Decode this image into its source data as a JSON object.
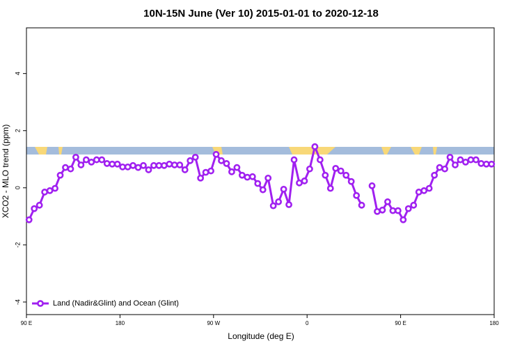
{
  "chart_data": {
    "type": "line",
    "title": "10N-15N June (Ver 10)   2015-01-01 to 2020-12-18",
    "x_label": "Longitude (deg E)",
    "y_label": "XCO2 - MLO trend (ppm)",
    "x": [
      92.5,
      97.5,
      102.5,
      107.5,
      112.5,
      117.5,
      122.5,
      127.5,
      132.5,
      137.5,
      142.5,
      147.5,
      152.5,
      157.5,
      162.5,
      167.5,
      172.5,
      177.5,
      182.5,
      187.5,
      192.5,
      197.5,
      202.5,
      207.5,
      212.5,
      217.5,
      222.5,
      227.5,
      232.5,
      237.5,
      242.5,
      247.5,
      252.5,
      257.5,
      262.5,
      267.5,
      272.5,
      277.5,
      282.5,
      287.5,
      292.5,
      297.5,
      302.5,
      307.5,
      312.5,
      317.5,
      322.5,
      327.5,
      332.5,
      337.5,
      342.5,
      347.5,
      352.5,
      357.5,
      362.5,
      367.5,
      372.5,
      377.5,
      382.5,
      387.5,
      392.5,
      397.5,
      402.5,
      407.5,
      412.5,
      417.5,
      422.5,
      427.5,
      432.5,
      437.5,
      442.5,
      447.5,
      452.5,
      457.5,
      462.5,
      467.5,
      472.5,
      477.5,
      482.5,
      487.5,
      492.5,
      497.5,
      502.5,
      507.5,
      512.5,
      517.5,
      522.5,
      527.5,
      532.5,
      537.5
    ],
    "series": [
      {
        "name": "Land (Nadir&Glint) and Ocean (Glint)",
        "color": "#a020f0",
        "values": [
          -1.12,
          -0.73,
          -0.61,
          -0.15,
          -0.1,
          -0.02,
          0.44,
          0.71,
          0.66,
          1.07,
          0.8,
          0.98,
          0.9,
          0.98,
          0.98,
          0.85,
          0.83,
          0.83,
          0.73,
          0.73,
          0.78,
          0.71,
          0.78,
          0.63,
          0.78,
          0.78,
          0.78,
          0.83,
          0.8,
          0.8,
          0.63,
          0.95,
          1.07,
          0.34,
          0.54,
          0.59,
          1.17,
          0.95,
          0.85,
          0.56,
          0.71,
          0.44,
          0.37,
          0.39,
          0.15,
          -0.07,
          0.34,
          -0.63,
          -0.49,
          -0.05,
          -0.59,
          0.98,
          0.17,
          0.24,
          0.66,
          1.44,
          0.98,
          0.44,
          -0.02,
          0.68,
          0.59,
          0.44,
          0.22,
          -0.27,
          -0.61,
          null,
          0.07,
          -0.83,
          -0.78,
          -0.49,
          -0.8,
          -0.8,
          -1.12,
          -0.73,
          -0.61,
          -0.15,
          -0.1,
          -0.02,
          0.44,
          0.71,
          0.66,
          1.07,
          0.8,
          0.98,
          0.9,
          0.98,
          0.98,
          0.85,
          0.83,
          0.83
        ]
      }
    ],
    "xlim": [
      90,
      540
    ],
    "xticks": [
      {
        "value": 90,
        "label": "90 E"
      },
      180,
      {
        "value": 270,
        "label": "90 W"
      },
      {
        "value": 360,
        "label": "0"
      },
      {
        "value": 450,
        "label": "90 E"
      },
      {
        "value": 540,
        "label": "180"
      }
    ],
    "ylim": [
      -4.44,
      5.6
    ],
    "yticks": [
      -4,
      -2,
      0,
      2,
      4
    ],
    "legend": "bottom-left"
  }
}
